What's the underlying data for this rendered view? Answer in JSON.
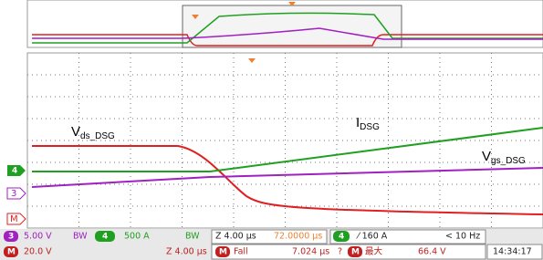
{
  "screen": {
    "waveform_labels": [
      {
        "main": "V",
        "sub": "ds_DSG"
      },
      {
        "main": "I",
        "sub": "DSG"
      },
      {
        "main": "V",
        "sub": "gs_DSG"
      }
    ],
    "channel_markers": [
      "4",
      "3",
      "M"
    ],
    "status_row_1": [
      "3",
      "5.00 V",
      "BW",
      "4",
      "500 A",
      "BW",
      "Z 4.00 µs",
      "72.0000 µs",
      "4",
      "⁄ 160 A",
      "< 10 Hz"
    ],
    "status_row_2": [
      "M",
      "20.0 V",
      "Z 4.00 µs",
      "M",
      "Fall",
      "7.024 µs",
      "?",
      "M",
      "最大",
      "66.4 V",
      "14:34:17"
    ]
  }
}
